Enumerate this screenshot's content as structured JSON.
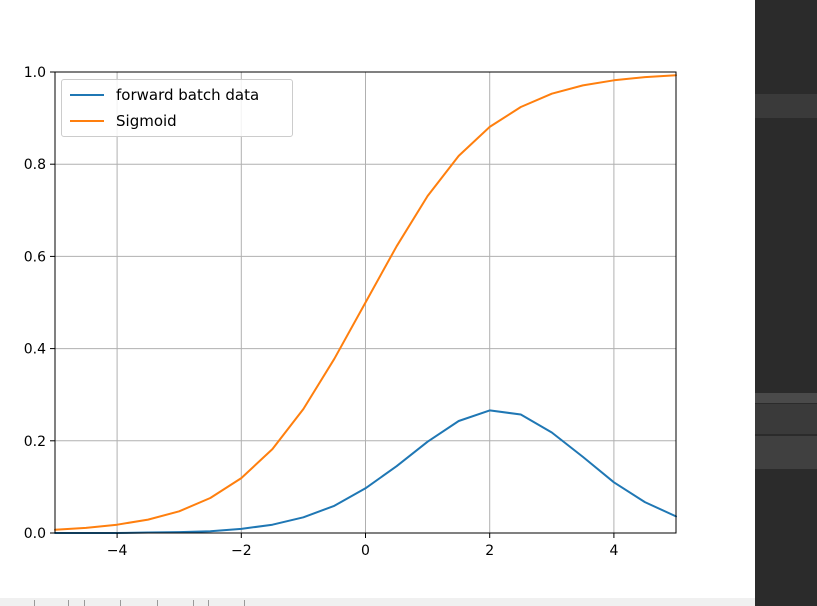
{
  "chart_data": {
    "type": "line",
    "title": "",
    "xlabel": "",
    "ylabel": "",
    "xlim": [
      -5,
      5
    ],
    "ylim": [
      0.0,
      1.0
    ],
    "grid": true,
    "legend_placement": "upper-left",
    "x_ticks": [
      -4,
      -2,
      0,
      2,
      4
    ],
    "x_tick_labels": [
      "−4",
      "−2",
      "0",
      "2",
      "4"
    ],
    "y_ticks": [
      0.0,
      0.2,
      0.4,
      0.6,
      0.8,
      1.0
    ],
    "y_tick_labels": [
      "0.0",
      "0.2",
      "0.4",
      "0.6",
      "0.8",
      "1.0"
    ],
    "x": [
      -5,
      -4.5,
      -4,
      -3.5,
      -3,
      -2.5,
      -2,
      -1.5,
      -1,
      -0.5,
      0,
      0.5,
      1,
      1.5,
      2,
      2.5,
      3,
      3.5,
      4,
      4.5,
      5
    ],
    "series": [
      {
        "name": "forward batch data",
        "color": "#1f77b4",
        "values": [
          0.0,
          0.0,
          0.0,
          0.001,
          0.002,
          0.004,
          0.009,
          0.018,
          0.034,
          0.059,
          0.097,
          0.145,
          0.198,
          0.243,
          0.266,
          0.257,
          0.218,
          0.165,
          0.11,
          0.067,
          0.036
        ]
      },
      {
        "name": "Sigmoid",
        "color": "#ff7f0e",
        "values": [
          0.007,
          0.011,
          0.018,
          0.029,
          0.047,
          0.076,
          0.119,
          0.182,
          0.269,
          0.378,
          0.5,
          0.622,
          0.731,
          0.818,
          0.881,
          0.924,
          0.953,
          0.971,
          0.982,
          0.989,
          0.993
        ]
      }
    ]
  }
}
